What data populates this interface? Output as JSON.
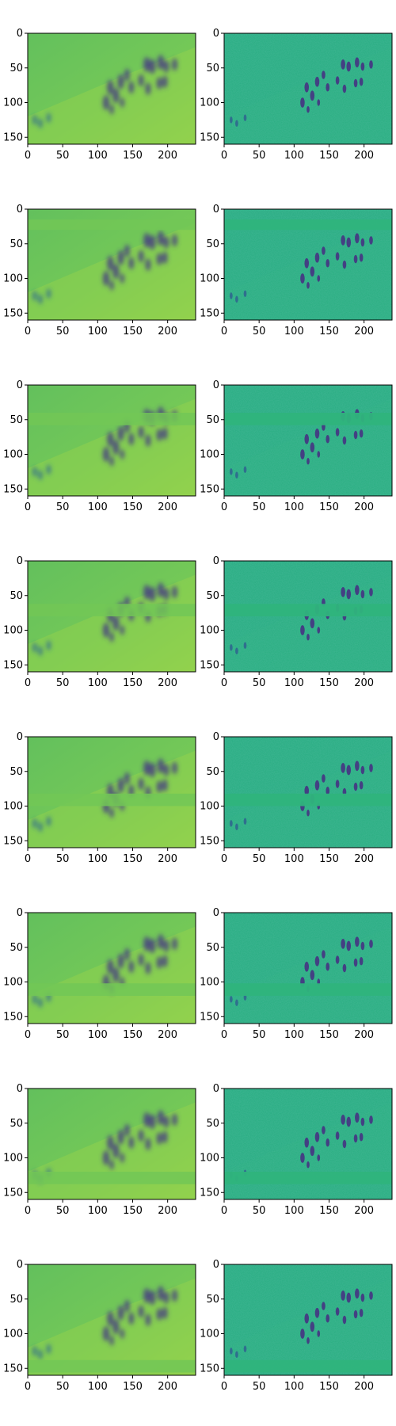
{
  "figure": {
    "rows": 8,
    "cols": 2,
    "description_shown": "",
    "x_ticks": [
      0,
      50,
      100,
      150,
      200
    ],
    "y_ticks": [
      0,
      50,
      100,
      150
    ],
    "x_range": [
      0,
      240
    ],
    "y_range": [
      0,
      160
    ],
    "left_panel_style": "blurred feature map",
    "right_panel_style": "sharp feature map",
    "band_rows_data_units": [
      [
        null,
        null
      ],
      [
        15,
        30
      ],
      [
        40,
        58
      ],
      [
        62,
        80
      ],
      [
        82,
        100
      ],
      [
        102,
        120
      ],
      [
        120,
        138
      ],
      [
        138,
        156
      ]
    ],
    "colors": {
      "left_bg": "#6cc45a",
      "left_bg_light": "#8fd14f",
      "right_bg": "#27ad81",
      "right_band": "#2fb47c",
      "figure_dark": "#443a83",
      "figure_mid": "#2f6b8e"
    }
  }
}
